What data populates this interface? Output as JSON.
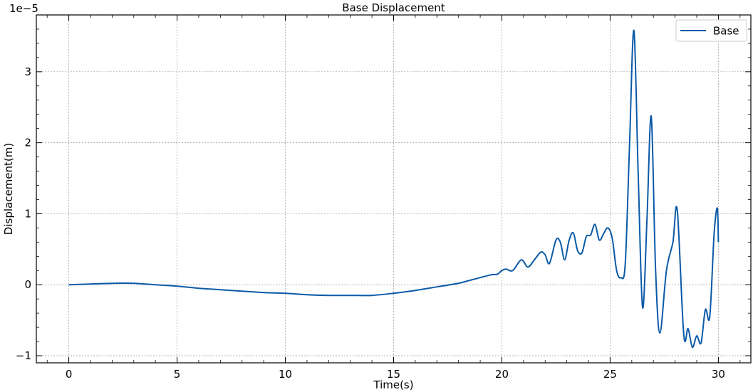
{
  "chart_data": {
    "type": "line",
    "title": "Base Displacement",
    "xlabel": "Time(s)",
    "ylabel": "Displacement(m)",
    "y_offset_label": "1e−5",
    "y_scale_note": "y values in units of 1e-5 m",
    "xlim": [
      -1.5,
      31.5
    ],
    "ylim": [
      -1.1,
      3.8
    ],
    "x_ticks": [
      0,
      5,
      10,
      15,
      20,
      25,
      30
    ],
    "x_tick_labels": [
      "0",
      "5",
      "10",
      "15",
      "20",
      "25",
      "30"
    ],
    "y_ticks": [
      -1,
      0,
      1,
      2,
      3
    ],
    "y_tick_labels": [
      "−1",
      "0",
      "1",
      "2",
      "3"
    ],
    "grid": true,
    "legend_position": "top-right",
    "line_color": "#0b5aa8",
    "series": [
      {
        "name": "Base",
        "x": [
          0,
          1,
          2,
          3,
          4,
          5,
          6,
          7,
          8,
          9,
          10,
          11,
          12,
          13,
          14,
          15,
          16,
          17,
          18,
          18.5,
          19,
          19.5,
          19.8,
          20.0,
          20.2,
          20.5,
          20.9,
          21.2,
          21.5,
          21.8,
          22.0,
          22.2,
          22.5,
          22.7,
          22.9,
          23.1,
          23.3,
          23.5,
          23.7,
          23.9,
          24.1,
          24.3,
          24.5,
          24.7,
          24.9,
          25.1,
          25.3,
          25.5,
          25.7,
          25.9,
          26.1,
          26.3,
          26.5,
          26.7,
          26.9,
          27.1,
          27.3,
          27.6,
          27.9,
          28.1,
          28.4,
          28.6,
          28.8,
          29.0,
          29.2,
          29.4,
          29.6,
          29.8,
          29.95,
          30.0
        ],
        "y": [
          0.0,
          0.01,
          0.02,
          0.02,
          0.0,
          -0.02,
          -0.05,
          -0.07,
          -0.09,
          -0.11,
          -0.12,
          -0.14,
          -0.15,
          -0.15,
          -0.15,
          -0.12,
          -0.08,
          -0.03,
          0.02,
          0.06,
          0.1,
          0.14,
          0.15,
          0.2,
          0.22,
          0.2,
          0.35,
          0.25,
          0.35,
          0.46,
          0.42,
          0.3,
          0.63,
          0.6,
          0.35,
          0.62,
          0.73,
          0.48,
          0.45,
          0.68,
          0.7,
          0.85,
          0.63,
          0.72,
          0.8,
          0.65,
          0.2,
          0.1,
          0.3,
          2.0,
          3.58,
          1.5,
          -0.32,
          0.9,
          2.37,
          0.2,
          -0.68,
          0.2,
          0.6,
          1.05,
          -0.7,
          -0.62,
          -0.88,
          -0.72,
          -0.82,
          -0.35,
          -0.45,
          0.7,
          1.08,
          0.6
        ]
      }
    ]
  }
}
